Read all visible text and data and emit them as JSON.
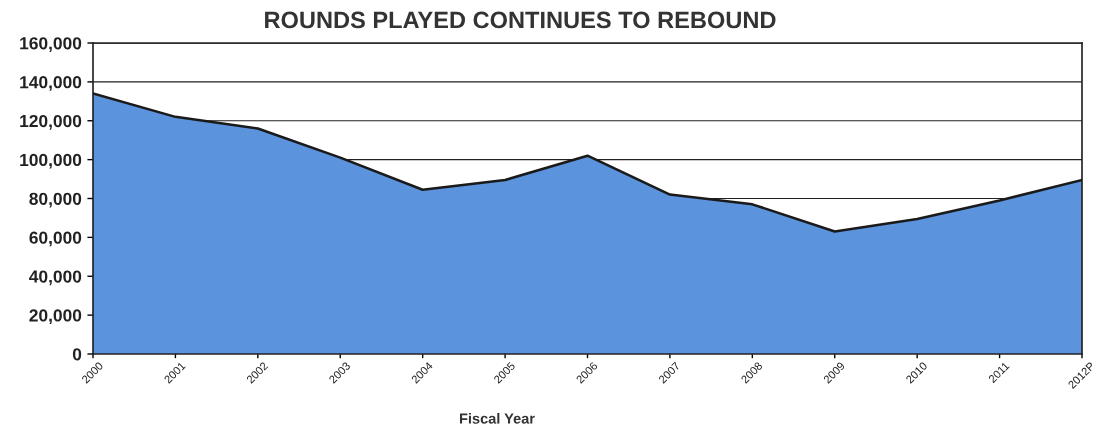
{
  "chart_data": {
    "type": "area",
    "title": "ROUNDS PLAYED CONTINUES TO REBOUND",
    "xlabel": "Fiscal Year",
    "categories": [
      "2000",
      "2001",
      "2002",
      "2003",
      "2004",
      "2005",
      "2006",
      "2007",
      "2008",
      "2009",
      "2010",
      "2011",
      "2012P"
    ],
    "series": [
      {
        "color": "#5b93dc",
        "values": [
          134000,
          122000,
          116000,
          101000,
          84500,
          89500,
          102000,
          82000,
          77000,
          63000,
          69500,
          79000,
          89500
        ]
      }
    ],
    "ylim": [
      0,
      160000
    ],
    "yticks": [
      {
        "value": 0,
        "label": "0"
      },
      {
        "value": 20000,
        "label": "20,000"
      },
      {
        "value": 40000,
        "label": "40,000"
      },
      {
        "value": 60000,
        "label": "60,000"
      },
      {
        "value": 80000,
        "label": "80,000"
      },
      {
        "value": 100000,
        "label": "100,000"
      },
      {
        "value": 120000,
        "label": "120,000"
      },
      {
        "value": 140000,
        "label": "140,000"
      },
      {
        "value": 160000,
        "label": "160,000"
      }
    ],
    "grid": "y"
  }
}
